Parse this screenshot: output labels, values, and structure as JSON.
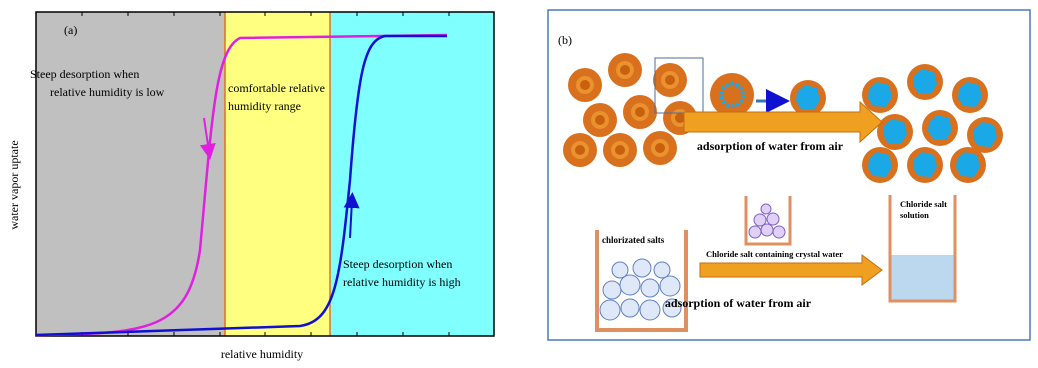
{
  "panel_a": {
    "label": "(a)",
    "low_note": [
      "Steep desorption when",
      "relative humidity is low"
    ],
    "range_note": [
      "comfortable relative",
      "humidity range"
    ],
    "high_note": [
      "Steep desorption when",
      "relative humidity is high"
    ],
    "y_axis_label": "water vapor uptate",
    "x_axis_label": "relative humidity"
  },
  "panel_b": {
    "label": "(b)",
    "top_arrow_label": "adsorption of water from air",
    "salt_label": "chlorizated salts",
    "crystal_label": "Chloride salt containing crystal water",
    "solution_label": [
      "Chloride salt",
      "solution"
    ],
    "bottom_arrow_label": "adsorption of water from air"
  }
}
